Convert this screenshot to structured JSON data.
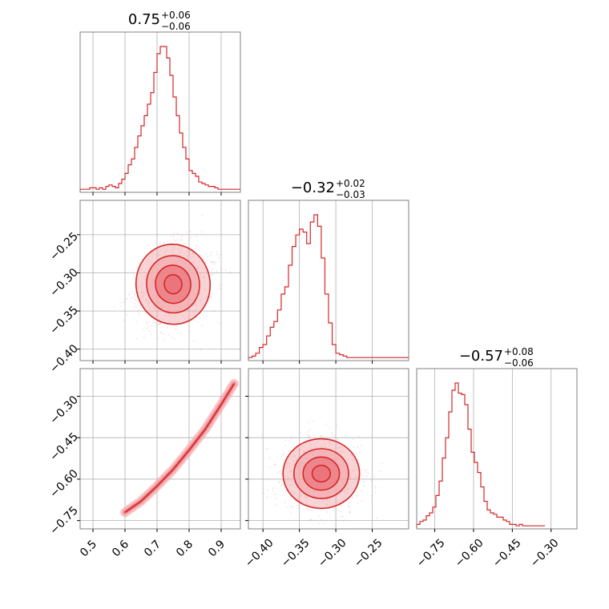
{
  "figure": {
    "colors": {
      "series": "#d62728",
      "fill": "#f2a9ad",
      "fill_dark": "#e9737a",
      "grid": "#b0b0b0",
      "frame": "#808080"
    }
  },
  "chart_data": [
    {
      "type": "histogram",
      "panel": "hist-param-1",
      "title": {
        "median": "0.75",
        "plus": "+0.06",
        "minus": "−0.06"
      },
      "xlim": [
        0.46,
        0.96
      ],
      "xticks": [
        0.5,
        0.6,
        0.7,
        0.8,
        0.9
      ],
      "xtick_labels": [
        "0.5",
        "0.6",
        "0.7",
        "0.8",
        "0.9"
      ],
      "bin_start": 0.46,
      "bin_width": 0.01,
      "counts": [
        1,
        1,
        1,
        2,
        2,
        1,
        2,
        1,
        3,
        4,
        3,
        2,
        5,
        8,
        12,
        18,
        22,
        30,
        38,
        45,
        52,
        60,
        68,
        82,
        95,
        100,
        100,
        92,
        80,
        65,
        52,
        40,
        30,
        22,
        14,
        12,
        10,
        6,
        5,
        4,
        3,
        3,
        2,
        1,
        1,
        1,
        1,
        1,
        1,
        1
      ],
      "grid": true
    },
    {
      "type": "scatter-contour",
      "panel": "joint-1-2",
      "xlim": [
        0.46,
        0.96
      ],
      "ylim": [
        -0.415,
        -0.205
      ],
      "yticks": [
        -0.25,
        -0.3,
        -0.35,
        -0.4
      ],
      "ytick_labels": [
        "−0.25",
        "−0.30",
        "−0.35",
        "−0.40"
      ],
      "x_center": 0.75,
      "y_center": -0.315,
      "x_sd": 0.055,
      "y_sd": 0.025,
      "rho": 0.3,
      "grid": true
    },
    {
      "type": "histogram",
      "panel": "hist-param-2",
      "title": {
        "median": "−0.32",
        "plus": "+0.02",
        "minus": "−0.03"
      },
      "xlim": [
        -0.42,
        -0.2
      ],
      "xticks": [
        -0.4,
        -0.35,
        -0.3,
        -0.25
      ],
      "xtick_labels": [
        "−0.40",
        "−0.35",
        "−0.30",
        "−0.25"
      ],
      "bin_start": -0.42,
      "bin_width": 0.005,
      "counts": [
        1,
        2,
        4,
        8,
        10,
        16,
        22,
        26,
        34,
        45,
        50,
        65,
        78,
        86,
        90,
        88,
        80,
        95,
        100,
        92,
        70,
        45,
        25,
        10,
        4,
        3,
        2,
        1,
        1,
        1,
        1,
        1,
        1,
        1,
        1,
        1,
        1,
        1,
        1,
        1,
        1,
        1,
        1,
        1
      ],
      "grid": true
    },
    {
      "type": "scatter-contour",
      "panel": "joint-1-3",
      "xlim": [
        0.46,
        0.96
      ],
      "ylim": [
        -0.78,
        -0.2
      ],
      "yticks": [
        -0.3,
        -0.45,
        -0.6,
        -0.75
      ],
      "ytick_labels": [
        "−0.30",
        "−0.45",
        "−0.60",
        "−0.75"
      ],
      "curve": [
        [
          0.6,
          -0.72
        ],
        [
          0.65,
          -0.68
        ],
        [
          0.7,
          -0.625
        ],
        [
          0.75,
          -0.565
        ],
        [
          0.8,
          -0.495
        ],
        [
          0.85,
          -0.42
        ],
        [
          0.9,
          -0.33
        ],
        [
          0.94,
          -0.255
        ]
      ],
      "grid": true
    },
    {
      "type": "scatter-contour",
      "panel": "joint-2-3",
      "xlim": [
        -0.42,
        -0.2
      ],
      "ylim": [
        -0.78,
        -0.2
      ],
      "xticks": [
        -0.4,
        -0.35,
        -0.3,
        -0.25
      ],
      "xtick_labels": [
        "−0.40",
        "−0.35",
        "−0.30",
        "−0.25"
      ],
      "x_center": -0.32,
      "y_center": -0.58,
      "x_sd": 0.025,
      "y_sd": 0.06,
      "rho": 0.0,
      "grid": true
    },
    {
      "type": "histogram",
      "panel": "hist-param-3",
      "title": {
        "median": "−0.57",
        "plus": "+0.08",
        "minus": "−0.06"
      },
      "xlim": [
        -0.82,
        -0.2
      ],
      "xticks": [
        -0.75,
        -0.6,
        -0.45,
        -0.3
      ],
      "xtick_labels": [
        "−0.75",
        "−0.60",
        "−0.45",
        "−0.30"
      ],
      "bin_start": -0.82,
      "bin_width": 0.0124,
      "counts": [
        2,
        4,
        5,
        8,
        10,
        14,
        22,
        32,
        48,
        62,
        80,
        95,
        100,
        93,
        92,
        85,
        68,
        52,
        45,
        38,
        28,
        18,
        12,
        10,
        9,
        7,
        7,
        5,
        4,
        2,
        2,
        1,
        2,
        1,
        1,
        1,
        1,
        1,
        1,
        1
      ],
      "grid": true
    }
  ]
}
